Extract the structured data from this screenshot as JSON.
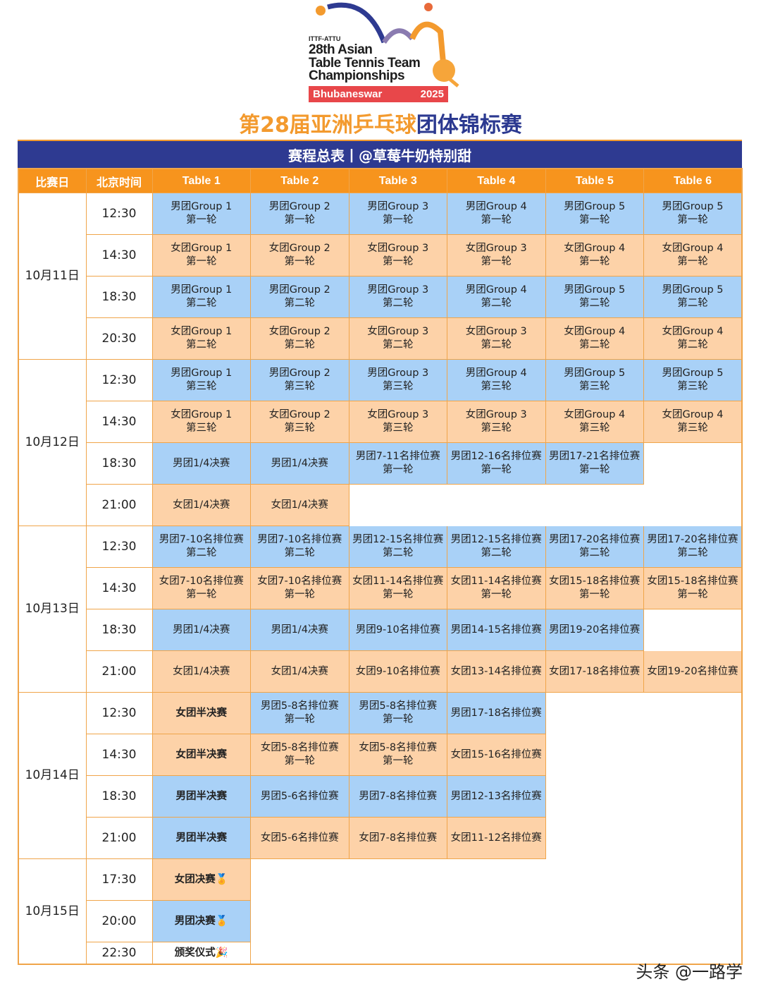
{
  "logo": {
    "org": "ITTF-ATTU",
    "line1": "28th Asian",
    "line2": "Table Tennis Team",
    "line3": "Championships",
    "city": "Bhubaneswar",
    "year": "2025"
  },
  "title": {
    "part1": "第28届亚洲乒乓球",
    "part2": "团体锦标赛"
  },
  "banner": "赛程总表丨@草莓牛奶特别甜",
  "headers": [
    "比赛日",
    "北京时间",
    "Table 1",
    "Table 2",
    "Table 3",
    "Table 4",
    "Table 5",
    "Table 6"
  ],
  "colors": {
    "men": "#a9d1f7",
    "women": "#fdd2a8",
    "header": "#f7941d",
    "banner": "#2e3a91"
  },
  "days": [
    {
      "date": "10月11日",
      "slots": [
        {
          "time": "12:30",
          "cells": [
            [
              "男团Group 1",
              "第一轮",
              "m"
            ],
            [
              "男团Group 2",
              "第一轮",
              "m"
            ],
            [
              "男团Group 3",
              "第一轮",
              "m"
            ],
            [
              "男团Group 4",
              "第一轮",
              "m"
            ],
            [
              "男团Group 5",
              "第一轮",
              "m"
            ],
            [
              "男团Group 5",
              "第一轮",
              "m"
            ]
          ]
        },
        {
          "time": "14:30",
          "cells": [
            [
              "女团Group 1",
              "第一轮",
              "w"
            ],
            [
              "女团Group 2",
              "第一轮",
              "w"
            ],
            [
              "女团Group 3",
              "第一轮",
              "w"
            ],
            [
              "女团Group 3",
              "第一轮",
              "w"
            ],
            [
              "女团Group 4",
              "第一轮",
              "w"
            ],
            [
              "女团Group 4",
              "第一轮",
              "w"
            ]
          ]
        },
        {
          "time": "18:30",
          "cells": [
            [
              "男团Group 1",
              "第二轮",
              "m"
            ],
            [
              "男团Group 2",
              "第二轮",
              "m"
            ],
            [
              "男团Group 3",
              "第二轮",
              "m"
            ],
            [
              "男团Group 4",
              "第二轮",
              "m"
            ],
            [
              "男团Group 5",
              "第二轮",
              "m"
            ],
            [
              "男团Group 5",
              "第二轮",
              "m"
            ]
          ]
        },
        {
          "time": "20:30",
          "cells": [
            [
              "女团Group 1",
              "第二轮",
              "w"
            ],
            [
              "女团Group 2",
              "第二轮",
              "w"
            ],
            [
              "女团Group 3",
              "第二轮",
              "w"
            ],
            [
              "女团Group 3",
              "第二轮",
              "w"
            ],
            [
              "女团Group 4",
              "第二轮",
              "w"
            ],
            [
              "女团Group 4",
              "第二轮",
              "w"
            ]
          ]
        }
      ]
    },
    {
      "date": "10月12日",
      "slots": [
        {
          "time": "12:30",
          "cells": [
            [
              "男团Group 1",
              "第三轮",
              "m"
            ],
            [
              "男团Group 2",
              "第三轮",
              "m"
            ],
            [
              "男团Group 3",
              "第三轮",
              "m"
            ],
            [
              "男团Group 4",
              "第三轮",
              "m"
            ],
            [
              "男团Group 5",
              "第三轮",
              "m"
            ],
            [
              "男团Group 5",
              "第三轮",
              "m"
            ]
          ]
        },
        {
          "time": "14:30",
          "cells": [
            [
              "女团Group 1",
              "第三轮",
              "w"
            ],
            [
              "女团Group 2",
              "第三轮",
              "w"
            ],
            [
              "女团Group 3",
              "第三轮",
              "w"
            ],
            [
              "女团Group 3",
              "第三轮",
              "w"
            ],
            [
              "女团Group 4",
              "第三轮",
              "w"
            ],
            [
              "女团Group 4",
              "第三轮",
              "w"
            ]
          ]
        },
        {
          "time": "18:30",
          "cells": [
            [
              "男团1/4决赛",
              "",
              "m"
            ],
            [
              "男团1/4决赛",
              "",
              "m"
            ],
            [
              "男团7-11名排位赛",
              "第一轮",
              "m"
            ],
            [
              "男团12-16名排位赛",
              "第一轮",
              "m"
            ],
            [
              "男团17-21名排位赛",
              "第一轮",
              "m"
            ],
            [
              "",
              "",
              "e"
            ]
          ]
        },
        {
          "time": "21:00",
          "cells": [
            [
              "女团1/4决赛",
              "",
              "w"
            ],
            [
              "女团1/4决赛",
              "",
              "w"
            ],
            [
              "",
              "",
              "e"
            ],
            [
              "",
              "",
              "e"
            ],
            [
              "",
              "",
              "e"
            ],
            [
              "",
              "",
              "e"
            ]
          ]
        }
      ]
    },
    {
      "date": "10月13日",
      "slots": [
        {
          "time": "12:30",
          "cells": [
            [
              "男团7-10名排位赛",
              "第二轮",
              "m"
            ],
            [
              "男团7-10名排位赛",
              "第二轮",
              "m"
            ],
            [
              "男团12-15名排位赛",
              "第二轮",
              "m"
            ],
            [
              "男团12-15名排位赛",
              "第二轮",
              "m"
            ],
            [
              "男团17-20名排位赛",
              "第二轮",
              "m"
            ],
            [
              "男团17-20名排位赛",
              "第二轮",
              "m"
            ]
          ]
        },
        {
          "time": "14:30",
          "cells": [
            [
              "女团7-10名排位赛",
              "第一轮",
              "w"
            ],
            [
              "女团7-10名排位赛",
              "第一轮",
              "w"
            ],
            [
              "女团11-14名排位赛",
              "第一轮",
              "w"
            ],
            [
              "女团11-14名排位赛",
              "第一轮",
              "w"
            ],
            [
              "女团15-18名排位赛",
              "第一轮",
              "w"
            ],
            [
              "女团15-18名排位赛",
              "第一轮",
              "w"
            ]
          ]
        },
        {
          "time": "18:30",
          "cells": [
            [
              "男团1/4决赛",
              "",
              "m"
            ],
            [
              "男团1/4决赛",
              "",
              "m"
            ],
            [
              "男团9-10名排位赛",
              "",
              "m"
            ],
            [
              "男团14-15名排位赛",
              "",
              "m"
            ],
            [
              "男团19-20名排位赛",
              "",
              "m"
            ],
            [
              "",
              "",
              "e"
            ]
          ]
        },
        {
          "time": "21:00",
          "cells": [
            [
              "女团1/4决赛",
              "",
              "w"
            ],
            [
              "女团1/4决赛",
              "",
              "w"
            ],
            [
              "女团9-10名排位赛",
              "",
              "w"
            ],
            [
              "女团13-14名排位赛",
              "",
              "w"
            ],
            [
              "女团17-18名排位赛",
              "",
              "w"
            ],
            [
              "女团19-20名排位赛",
              "",
              "w"
            ]
          ]
        }
      ]
    },
    {
      "date": "10月14日",
      "slots": [
        {
          "time": "12:30",
          "cells": [
            [
              "女团半决赛",
              "",
              "w b"
            ],
            [
              "男团5-8名排位赛",
              "第一轮",
              "m"
            ],
            [
              "男团5-8名排位赛",
              "第一轮",
              "m"
            ],
            [
              "男团17-18名排位赛",
              "",
              "m"
            ],
            [
              "",
              "",
              "e"
            ],
            [
              "",
              "",
              "e"
            ]
          ]
        },
        {
          "time": "14:30",
          "cells": [
            [
              "女团半决赛",
              "",
              "w b"
            ],
            [
              "女团5-8名排位赛",
              "第一轮",
              "w"
            ],
            [
              "女团5-8名排位赛",
              "第一轮",
              "w"
            ],
            [
              "女团15-16名排位赛",
              "",
              "w"
            ],
            [
              "",
              "",
              "e"
            ],
            [
              "",
              "",
              "e"
            ]
          ]
        },
        {
          "time": "18:30",
          "cells": [
            [
              "男团半决赛",
              "",
              "m b"
            ],
            [
              "男团5-6名排位赛",
              "",
              "m"
            ],
            [
              "男团7-8名排位赛",
              "",
              "m"
            ],
            [
              "男团12-13名排位赛",
              "",
              "m"
            ],
            [
              "",
              "",
              "e"
            ],
            [
              "",
              "",
              "e"
            ]
          ]
        },
        {
          "time": "21:00",
          "cells": [
            [
              "男团半决赛",
              "",
              "m b"
            ],
            [
              "女团5-6名排位赛",
              "",
              "w"
            ],
            [
              "女团7-8名排位赛",
              "",
              "w"
            ],
            [
              "女团11-12名排位赛",
              "",
              "w"
            ],
            [
              "",
              "",
              "e"
            ],
            [
              "",
              "",
              "e"
            ]
          ]
        }
      ]
    },
    {
      "date": "10月15日",
      "slots": [
        {
          "time": "17:30",
          "cells": [
            [
              "女团决赛🏅",
              "",
              "w b"
            ],
            [
              "",
              "",
              "e"
            ],
            [
              "",
              "",
              "e"
            ],
            [
              "",
              "",
              "e"
            ],
            [
              "",
              "",
              "e"
            ],
            [
              "",
              "",
              "e"
            ]
          ]
        },
        {
          "time": "20:00",
          "cells": [
            [
              "男团决赛🏅",
              "",
              "m b"
            ],
            [
              "",
              "",
              "e"
            ],
            [
              "",
              "",
              "e"
            ],
            [
              "",
              "",
              "e"
            ],
            [
              "",
              "",
              "e"
            ],
            [
              "",
              "",
              "e"
            ]
          ]
        },
        {
          "time": "22:30",
          "cells": [
            [
              "颁奖仪式🎉",
              "",
              "b"
            ],
            [
              "",
              "",
              "e"
            ],
            [
              "",
              "",
              "e"
            ],
            [
              "",
              "",
              "e"
            ],
            [
              "",
              "",
              "e"
            ],
            [
              "",
              "",
              "e"
            ]
          ]
        }
      ]
    }
  ],
  "watermark": "头条 @一路学"
}
